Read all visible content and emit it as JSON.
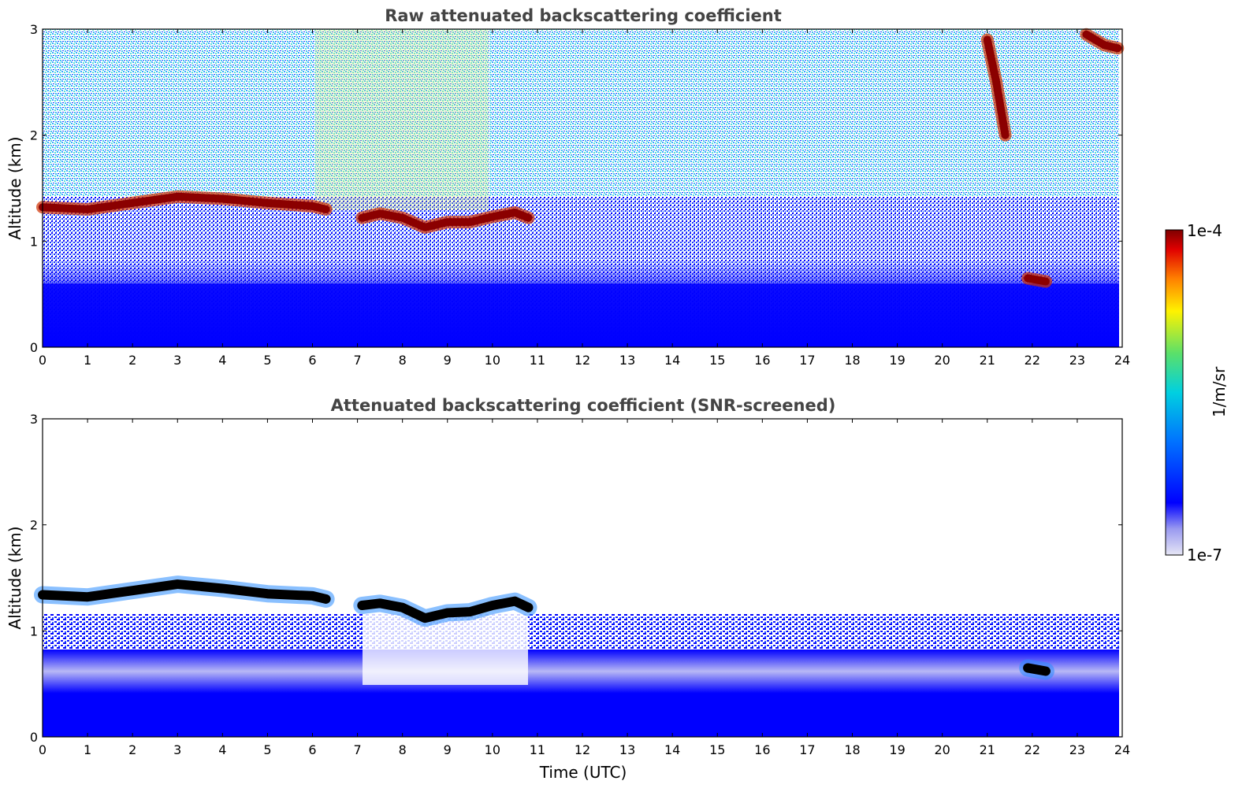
{
  "chart_data": [
    {
      "type": "heatmap",
      "title": "Raw attenuated backscattering coefficient",
      "xlabel": "",
      "ylabel": "Altitude (km)",
      "xlim": [
        0,
        24
      ],
      "ylim": [
        0,
        3
      ],
      "xticks": [
        "0",
        "1",
        "2",
        "3",
        "4",
        "5",
        "6",
        "7",
        "8",
        "9",
        "10",
        "11",
        "12",
        "13",
        "14",
        "15",
        "16",
        "17",
        "18",
        "19",
        "20",
        "21",
        "22",
        "23",
        "24"
      ],
      "yticks": [
        "0",
        "1",
        "2",
        "3"
      ],
      "layers": [
        {
          "name": "cloud",
          "x": [
            0,
            1,
            2,
            3,
            4,
            5,
            6,
            6.3
          ],
          "y": [
            1.32,
            1.3,
            1.36,
            1.42,
            1.4,
            1.36,
            1.33,
            1.3
          ],
          "level": "1e-4"
        },
        {
          "name": "cloud",
          "x": [
            7.1,
            7.5,
            8.0,
            8.5,
            9.0,
            9.5,
            10.0,
            10.5,
            10.8
          ],
          "y": [
            1.22,
            1.26,
            1.22,
            1.13,
            1.18,
            1.18,
            1.23,
            1.27,
            1.22
          ],
          "level": "1e-4"
        },
        {
          "name": "cloud",
          "x": [
            21.0,
            21.2,
            21.4
          ],
          "y": [
            2.9,
            2.5,
            2.0
          ],
          "level": "1e-4"
        },
        {
          "name": "cloud",
          "x": [
            21.9,
            22.3
          ],
          "y": [
            0.65,
            0.62
          ],
          "level": "1e-4"
        },
        {
          "name": "cloud",
          "x": [
            23.2,
            23.6,
            23.9
          ],
          "y": [
            2.95,
            2.85,
            2.82
          ],
          "level": "1e-4"
        }
      ]
    },
    {
      "type": "heatmap",
      "title": "Attenuated backscattering coefficient (SNR-screened)",
      "xlabel": "Time (UTC)",
      "ylabel": "Altitude (km)",
      "xlim": [
        0,
        24
      ],
      "ylim": [
        0,
        3
      ],
      "xticks": [
        "0",
        "1",
        "2",
        "3",
        "4",
        "5",
        "6",
        "7",
        "8",
        "9",
        "10",
        "11",
        "12",
        "13",
        "14",
        "15",
        "16",
        "17",
        "18",
        "19",
        "20",
        "21",
        "22",
        "23",
        "24"
      ],
      "yticks": [
        "0",
        "1",
        "2",
        "3"
      ],
      "layers": [
        {
          "name": "cloud",
          "x": [
            0,
            1,
            2,
            3,
            4,
            5,
            6,
            6.3
          ],
          "y": [
            1.34,
            1.32,
            1.38,
            1.44,
            1.4,
            1.35,
            1.33,
            1.3
          ],
          "level": "saturated"
        },
        {
          "name": "cloud",
          "x": [
            7.1,
            7.5,
            8.0,
            8.5,
            9.0,
            9.5,
            10.0,
            10.5,
            10.8
          ],
          "y": [
            1.24,
            1.26,
            1.22,
            1.12,
            1.17,
            1.18,
            1.24,
            1.28,
            1.22
          ],
          "level": "saturated"
        },
        {
          "name": "cloud",
          "x": [
            21.9,
            22.3
          ],
          "y": [
            0.65,
            0.62
          ],
          "level": "saturated"
        }
      ]
    }
  ],
  "colorbar": {
    "label": "1/m/sr",
    "max_label": "1e-4",
    "min_label": "1e-7",
    "colors": [
      "#e6e6f5",
      "#9a9af0",
      "#0000ff",
      "#0073ff",
      "#00d0e0",
      "#5ae06a",
      "#fff200",
      "#ff8000",
      "#e00000",
      "#7f0000"
    ]
  }
}
